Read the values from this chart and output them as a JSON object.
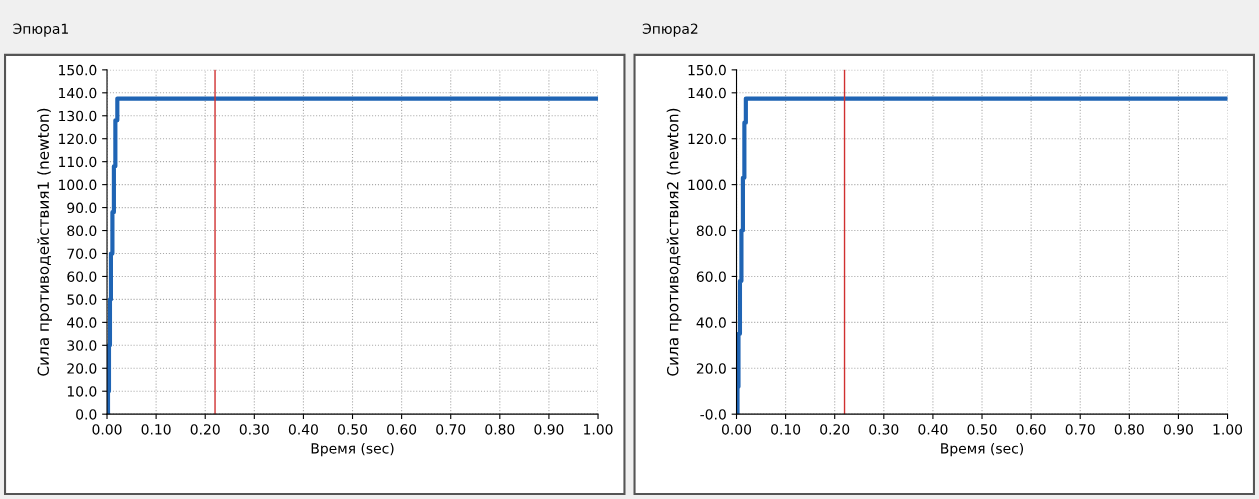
{
  "chart_data": [
    {
      "type": "step",
      "title": "Эпюра1",
      "xlabel": "Время (sec)",
      "ylabel": "Сила противодействия1 (newton)",
      "x": [
        0,
        0.002,
        0.004,
        0.006,
        0.008,
        0.011,
        0.014,
        0.017,
        0.021,
        1.0
      ],
      "series": [
        {
          "color": "#1f64b4",
          "values": [
            0,
            10,
            30,
            50,
            70,
            88,
            108,
            128,
            137.5,
            137.5
          ]
        }
      ],
      "xlim": [
        0,
        1
      ],
      "xticks": [
        {
          "value": 0,
          "label": "0.00"
        },
        {
          "value": 0.1,
          "label": "0.10"
        },
        {
          "value": 0.2,
          "label": "0.20"
        },
        {
          "value": 0.3,
          "label": "0.30"
        },
        {
          "value": 0.4,
          "label": "0.40"
        },
        {
          "value": 0.5,
          "label": "0.50"
        },
        {
          "value": 0.6,
          "label": "0.60"
        },
        {
          "value": 0.7,
          "label": "0.70"
        },
        {
          "value": 0.8,
          "label": "0.80"
        },
        {
          "value": 0.9,
          "label": "0.90"
        },
        {
          "value": 1.0,
          "label": "1.00"
        }
      ],
      "ylim": [
        0,
        150
      ],
      "yticks": [
        {
          "value": 0,
          "label": "0.0"
        },
        {
          "value": 10,
          "label": "10.0"
        },
        {
          "value": 20,
          "label": "20.0"
        },
        {
          "value": 30,
          "label": "30.0"
        },
        {
          "value": 40,
          "label": "40.0"
        },
        {
          "value": 50,
          "label": "50.0"
        },
        {
          "value": 60,
          "label": "60.0"
        },
        {
          "value": 70,
          "label": "70.0"
        },
        {
          "value": 80,
          "label": "80.0"
        },
        {
          "value": 90,
          "label": "90.0"
        },
        {
          "value": 100,
          "label": "100.0"
        },
        {
          "value": 110,
          "label": "110.0"
        },
        {
          "value": 120,
          "label": "120.0"
        },
        {
          "value": 130,
          "label": "130.0"
        },
        {
          "value": 140,
          "label": "140.0"
        },
        {
          "value": 150,
          "label": "150.0"
        }
      ],
      "ref_lines": [
        {
          "axis": "x",
          "value": 0.22,
          "color": "#d03030"
        }
      ],
      "grid": true,
      "legend": false
    },
    {
      "type": "step",
      "title": "Эпюра2",
      "xlabel": "Время (sec)",
      "ylabel": "Сила противодействия2 (newton)",
      "x": [
        0,
        0.002,
        0.004,
        0.007,
        0.01,
        0.013,
        0.016,
        0.019,
        0.022,
        1.0
      ],
      "series": [
        {
          "color": "#1f64b4",
          "values": [
            0,
            12,
            35,
            58,
            80,
            103,
            127,
            137.5,
            137.5,
            137.5
          ]
        }
      ],
      "xlim": [
        0,
        1
      ],
      "xticks": [
        {
          "value": 0,
          "label": "0.00"
        },
        {
          "value": 0.1,
          "label": "0.10"
        },
        {
          "value": 0.2,
          "label": "0.20"
        },
        {
          "value": 0.3,
          "label": "0.30"
        },
        {
          "value": 0.4,
          "label": "0.40"
        },
        {
          "value": 0.5,
          "label": "0.50"
        },
        {
          "value": 0.6,
          "label": "0.60"
        },
        {
          "value": 0.7,
          "label": "0.70"
        },
        {
          "value": 0.8,
          "label": "0.80"
        },
        {
          "value": 0.9,
          "label": "0.90"
        },
        {
          "value": 1.0,
          "label": "1.00"
        }
      ],
      "ylim": [
        0,
        150
      ],
      "yticks": [
        {
          "value": 0,
          "label": "-0.0"
        },
        {
          "value": 20,
          "label": "20.0"
        },
        {
          "value": 40,
          "label": "40.0"
        },
        {
          "value": 60,
          "label": "60.0"
        },
        {
          "value": 80,
          "label": "80.0"
        },
        {
          "value": 100,
          "label": "100.0"
        },
        {
          "value": 120,
          "label": "120.0"
        },
        {
          "value": 140,
          "label": "140.0"
        },
        {
          "value": 150,
          "label": "150.0"
        }
      ],
      "ref_lines": [
        {
          "axis": "x",
          "value": 0.22,
          "color": "#d03030"
        }
      ],
      "grid": true,
      "legend": false
    }
  ]
}
